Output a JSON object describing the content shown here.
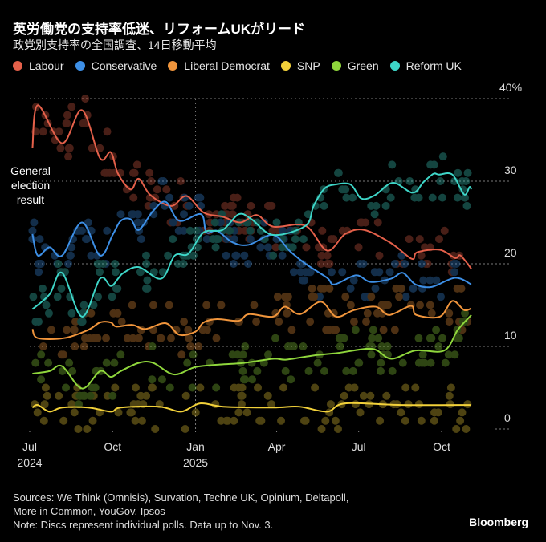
{
  "header": {
    "title": "英労働党の支持率低迷、リフォームUKがリード",
    "subtitle": "政党別支持率の全国調査、14日移動平均"
  },
  "annotation": {
    "lines": [
      "General",
      "election",
      "result"
    ]
  },
  "footer": {
    "sources_line1": "Sources: We Think (Omnisis), Survation, Techne UK, Opinium, Deltapoll,",
    "sources_line2": "More in Common, YouGov, Ipsos",
    "note": "Note: Discs represent individual polls. Data up to Nov. 3.",
    "brand": "Bloomberg"
  },
  "chart_data": {
    "type": "line",
    "title": "英労働党の支持率低迷、リフォームUKがリード",
    "subtitle": "政党別支持率の全国調査、14日移動平均",
    "xlabel": "",
    "ylabel": "",
    "ylim": [
      0,
      40
    ],
    "xlim": [
      "2024-07-01",
      "2025-11-03"
    ],
    "y_ticks": [
      {
        "value": 40,
        "label": "40%"
      },
      {
        "value": 30,
        "label": "30"
      },
      {
        "value": 20,
        "label": "20"
      },
      {
        "value": 10,
        "label": "10"
      },
      {
        "value": 0,
        "label": "0"
      }
    ],
    "x_ticks": [
      {
        "date": "2024-07-01",
        "label": "Jul",
        "year": "2024"
      },
      {
        "date": "2024-10-01",
        "label": "Oct",
        "year": ""
      },
      {
        "date": "2025-01-01",
        "label": "Jan",
        "year": "2025"
      },
      {
        "date": "2025-04-01",
        "label": "Apr",
        "year": ""
      },
      {
        "date": "2025-07-01",
        "label": "Jul",
        "year": ""
      },
      {
        "date": "2025-10-01",
        "label": "Oct",
        "year": ""
      }
    ],
    "grid": true,
    "legend_position": "top-left",
    "series": [
      {
        "name": "Labour",
        "color": "#e4604a",
        "points": [
          [
            "2024-07-04",
            34
          ],
          [
            "2024-07-10",
            39.2
          ],
          [
            "2024-08-06",
            34.6
          ],
          [
            "2024-08-28",
            38.6
          ],
          [
            "2024-09-17",
            32.8
          ],
          [
            "2024-09-29",
            33.5
          ],
          [
            "2024-10-07",
            30.9
          ],
          [
            "2024-10-21",
            29
          ],
          [
            "2024-10-30",
            30.3
          ],
          [
            "2024-11-12",
            28.3
          ],
          [
            "2024-12-05",
            27
          ],
          [
            "2024-12-22",
            28.2
          ],
          [
            "2025-01-10",
            26.2
          ],
          [
            "2025-01-31",
            25.7
          ],
          [
            "2025-02-20",
            25
          ],
          [
            "2025-03-10",
            25.9
          ],
          [
            "2025-03-28",
            24.5
          ],
          [
            "2025-05-03",
            24.6
          ],
          [
            "2025-05-27",
            21.6
          ],
          [
            "2025-06-16",
            23.6
          ],
          [
            "2025-07-07",
            24.1
          ],
          [
            "2025-08-06",
            22.5
          ],
          [
            "2025-08-29",
            20.6
          ],
          [
            "2025-09-04",
            21.4
          ],
          [
            "2025-09-29",
            21.7
          ],
          [
            "2025-10-16",
            20.7
          ],
          [
            "2025-10-22",
            21
          ],
          [
            "2025-11-03",
            19.4
          ]
        ]
      },
      {
        "name": "Conservative",
        "color": "#3d8fe6",
        "points": [
          [
            "2024-07-04",
            23.6
          ],
          [
            "2024-07-10",
            21
          ],
          [
            "2024-07-23",
            22
          ],
          [
            "2024-08-06",
            21
          ],
          [
            "2024-08-28",
            25
          ],
          [
            "2024-09-17",
            21
          ],
          [
            "2024-10-01",
            23.5
          ],
          [
            "2024-10-10",
            25.2
          ],
          [
            "2024-10-21",
            25.4
          ],
          [
            "2024-10-30",
            24.1
          ],
          [
            "2024-11-15",
            26.4
          ],
          [
            "2024-11-29",
            27.5
          ],
          [
            "2024-12-14",
            25.2
          ],
          [
            "2025-01-07",
            26
          ],
          [
            "2025-01-13",
            23.8
          ],
          [
            "2025-01-25",
            24
          ],
          [
            "2025-02-11",
            22.6
          ],
          [
            "2025-03-01",
            22.3
          ],
          [
            "2025-03-28",
            23.5
          ],
          [
            "2025-04-16",
            21.5
          ],
          [
            "2025-05-03",
            20
          ],
          [
            "2025-05-27",
            18.3
          ],
          [
            "2025-06-04",
            17.5
          ],
          [
            "2025-06-28",
            18.6
          ],
          [
            "2025-07-14",
            17.8
          ],
          [
            "2025-08-06",
            18.2
          ],
          [
            "2025-08-19",
            18.9
          ],
          [
            "2025-09-02",
            17.5
          ],
          [
            "2025-09-20",
            17.2
          ],
          [
            "2025-10-16",
            18.3
          ],
          [
            "2025-11-03",
            17.5
          ]
        ]
      },
      {
        "name": "Liberal Democrat",
        "color": "#f0953c",
        "points": [
          [
            "2024-07-04",
            12.1
          ],
          [
            "2024-07-10",
            11
          ],
          [
            "2024-08-08",
            11
          ],
          [
            "2024-09-04",
            12
          ],
          [
            "2024-09-17",
            12.9
          ],
          [
            "2024-09-29",
            12.9
          ],
          [
            "2024-10-05",
            12.4
          ],
          [
            "2024-10-23",
            12.6
          ],
          [
            "2024-11-06",
            12.1
          ],
          [
            "2024-11-29",
            12.8
          ],
          [
            "2024-12-14",
            11.4
          ],
          [
            "2025-01-01",
            11.8
          ],
          [
            "2025-01-10",
            12.9
          ],
          [
            "2025-01-25",
            13.3
          ],
          [
            "2025-02-18",
            13.1
          ],
          [
            "2025-03-01",
            13.9
          ],
          [
            "2025-03-28",
            13.6
          ],
          [
            "2025-04-10",
            14.8
          ],
          [
            "2025-04-27",
            13.9
          ],
          [
            "2025-05-20",
            15.4
          ],
          [
            "2025-06-06",
            13.6
          ],
          [
            "2025-06-26",
            14.4
          ],
          [
            "2025-07-20",
            14.8
          ],
          [
            "2025-08-04",
            13.8
          ],
          [
            "2025-08-28",
            14.9
          ],
          [
            "2025-09-03",
            13.8
          ],
          [
            "2025-09-29",
            13.6
          ],
          [
            "2025-10-13",
            15.5
          ],
          [
            "2025-10-26",
            14.4
          ],
          [
            "2025-11-03",
            14.6
          ]
        ]
      },
      {
        "name": "SNP",
        "color": "#f2d13a",
        "points": [
          [
            "2024-07-04",
            2.6
          ],
          [
            "2024-07-10",
            2.9
          ],
          [
            "2024-07-23",
            2.1
          ],
          [
            "2024-08-06",
            2.6
          ],
          [
            "2024-09-04",
            2.6
          ],
          [
            "2024-09-29",
            2.1
          ],
          [
            "2024-10-10",
            2.6
          ],
          [
            "2024-11-22",
            2.7
          ],
          [
            "2024-12-16",
            2.1
          ],
          [
            "2025-01-06",
            3.1
          ],
          [
            "2025-02-01",
            2.7
          ],
          [
            "2025-03-28",
            2.6
          ],
          [
            "2025-04-26",
            2.7
          ],
          [
            "2025-05-27",
            2.1
          ],
          [
            "2025-06-16",
            3.1
          ],
          [
            "2025-08-17",
            2.9
          ],
          [
            "2025-11-03",
            2.9
          ]
        ]
      },
      {
        "name": "Green",
        "color": "#8fd63c",
        "points": [
          [
            "2024-07-04",
            6.7
          ],
          [
            "2024-07-23",
            7
          ],
          [
            "2024-08-06",
            7.6
          ],
          [
            "2024-08-28",
            4.9
          ],
          [
            "2024-09-17",
            7
          ],
          [
            "2024-09-29",
            6.3
          ],
          [
            "2024-10-10",
            7
          ],
          [
            "2024-10-30",
            8
          ],
          [
            "2024-11-15",
            8
          ],
          [
            "2024-12-08",
            6.6
          ],
          [
            "2025-01-01",
            7.5
          ],
          [
            "2025-01-28",
            7.8
          ],
          [
            "2025-02-24",
            8
          ],
          [
            "2025-03-28",
            8.5
          ],
          [
            "2025-04-12",
            8.4
          ],
          [
            "2025-05-12",
            8.9
          ],
          [
            "2025-06-08",
            9.2
          ],
          [
            "2025-07-16",
            9.7
          ],
          [
            "2025-08-06",
            8.5
          ],
          [
            "2025-09-02",
            9.5
          ],
          [
            "2025-10-04",
            9.5
          ],
          [
            "2025-10-19",
            12
          ],
          [
            "2025-11-03",
            13.8
          ]
        ]
      },
      {
        "name": "Reform UK",
        "color": "#3ed6c8",
        "points": [
          [
            "2024-07-04",
            14.5
          ],
          [
            "2024-07-23",
            16.3
          ],
          [
            "2024-08-06",
            18.9
          ],
          [
            "2024-08-28",
            13.6
          ],
          [
            "2024-09-17",
            18.2
          ],
          [
            "2024-09-29",
            17.3
          ],
          [
            "2024-10-07",
            18.2
          ],
          [
            "2024-10-13",
            18.9
          ],
          [
            "2024-10-30",
            19.6
          ],
          [
            "2024-11-24",
            18.2
          ],
          [
            "2024-12-09",
            21
          ],
          [
            "2024-12-24",
            21.2
          ],
          [
            "2025-01-10",
            23.8
          ],
          [
            "2025-01-31",
            24.1
          ],
          [
            "2025-02-18",
            26
          ],
          [
            "2025-03-04",
            25.4
          ],
          [
            "2025-03-28",
            23.5
          ],
          [
            "2025-05-03",
            24.6
          ],
          [
            "2025-05-12",
            27
          ],
          [
            "2025-05-24",
            29.1
          ],
          [
            "2025-06-05",
            29.6
          ],
          [
            "2025-06-22",
            29.6
          ],
          [
            "2025-07-04",
            27.9
          ],
          [
            "2025-07-19",
            28.3
          ],
          [
            "2025-08-08",
            29.8
          ],
          [
            "2025-08-30",
            28.6
          ],
          [
            "2025-09-11",
            29.9
          ],
          [
            "2025-09-22",
            30.9
          ],
          [
            "2025-09-28",
            30.8
          ],
          [
            "2025-10-13",
            30.8
          ],
          [
            "2025-10-26",
            28.4
          ],
          [
            "2025-11-01",
            29.3
          ],
          [
            "2025-11-03",
            29
          ]
        ]
      }
    ]
  }
}
